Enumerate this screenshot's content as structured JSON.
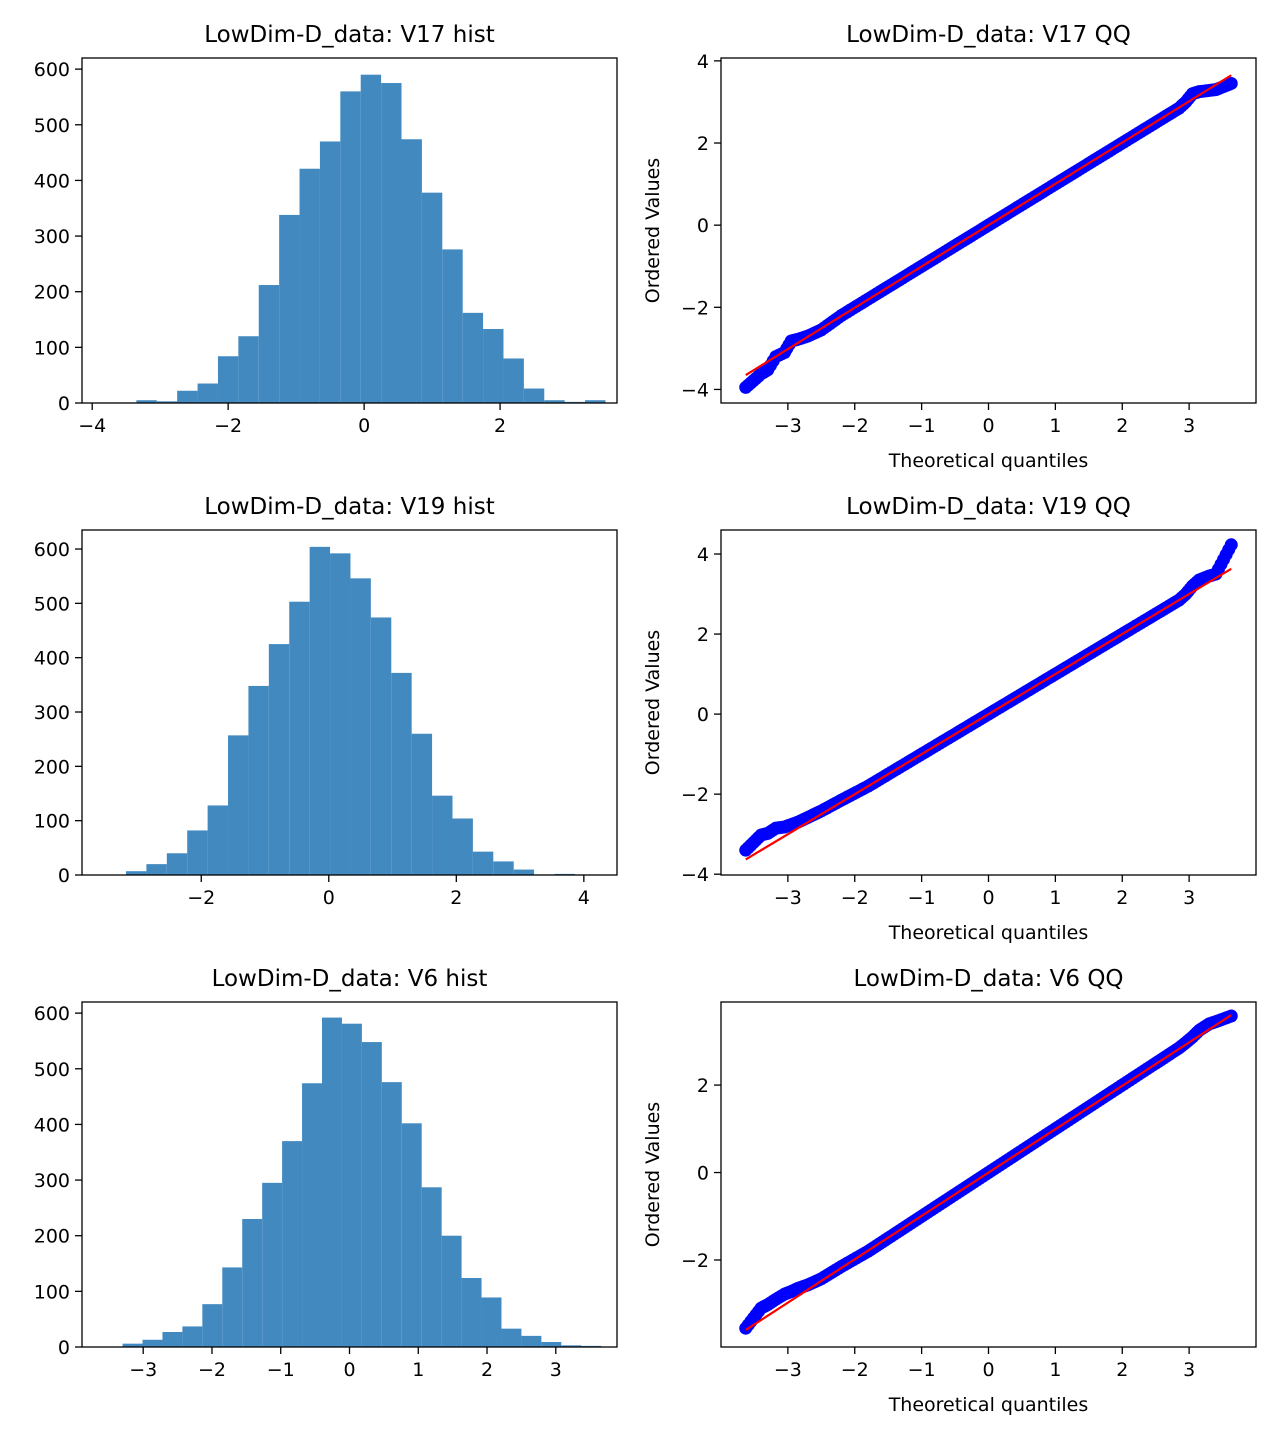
{
  "colors": {
    "hist": "#4289c0",
    "points": "#0000ff",
    "fit_line": "#ff0000"
  },
  "chart_data": [
    {
      "type": "bar",
      "title": "LowDim-D_data: V17 hist",
      "xlabel": "",
      "ylabel": "",
      "xlim": [
        -4.15,
        3.72
      ],
      "ylim": [
        0,
        620
      ],
      "xticks": [
        "−4",
        "−2",
        "0",
        "2"
      ],
      "xtick_values": [
        -4,
        -2,
        0,
        2
      ],
      "yticks": [
        "0",
        "100",
        "200",
        "300",
        "400",
        "500",
        "600"
      ],
      "ytick_values": [
        0,
        100,
        200,
        300,
        400,
        500,
        600
      ],
      "bin_edges": [
        -3.95,
        -3.65,
        -3.35,
        -3.05,
        -2.75,
        -2.45,
        -2.15,
        -1.85,
        -1.55,
        -1.25,
        -0.95,
        -0.65,
        -0.35,
        -0.05,
        0.25,
        0.55,
        0.85,
        1.15,
        1.45,
        1.75,
        2.05,
        2.35,
        2.65,
        2.95,
        3.25,
        3.55
      ],
      "values": [
        1,
        1,
        5,
        3,
        22,
        35,
        84,
        120,
        212,
        338,
        421,
        470,
        560,
        590,
        575,
        474,
        378,
        276,
        162,
        133,
        80,
        26,
        5,
        2,
        5
      ]
    },
    {
      "type": "scatter",
      "title": "LowDim-D_data: V17 QQ",
      "xlabel": "Theoretical quantiles",
      "ylabel": "Ordered Values",
      "xlim": [
        -4.0,
        4.0
      ],
      "ylim": [
        -4.33,
        4.07
      ],
      "xticks": [
        "−3",
        "−2",
        "−1",
        "0",
        "1",
        "2",
        "3"
      ],
      "xtick_values": [
        -3,
        -2,
        -1,
        0,
        1,
        2,
        3
      ],
      "yticks": [
        "−4",
        "−2",
        "0",
        "2",
        "4"
      ],
      "ytick_values": [
        -4,
        -2,
        0,
        2,
        4
      ],
      "fit_line": {
        "x": [
          -3.63,
          3.63
        ],
        "y": [
          -3.65,
          3.65
        ]
      },
      "series": [
        {
          "x": [
            -3.63,
            -3.4,
            -3.3,
            -3.18,
            -3.05,
            -2.95,
            -2.85,
            -2.7,
            -2.5,
            -2.2,
            -1.8,
            -1.2,
            -0.6,
            0,
            0.6,
            1.2,
            1.8,
            2.2,
            2.5,
            2.7,
            2.85,
            2.95,
            3.05,
            3.15,
            3.3,
            3.4,
            3.63
          ],
          "y": [
            -3.95,
            -3.62,
            -3.52,
            -3.2,
            -3.1,
            -2.82,
            -2.78,
            -2.7,
            -2.55,
            -2.2,
            -1.8,
            -1.2,
            -0.6,
            0,
            0.6,
            1.2,
            1.8,
            2.2,
            2.5,
            2.7,
            2.85,
            3.0,
            3.2,
            3.25,
            3.28,
            3.3,
            3.45
          ]
        }
      ]
    },
    {
      "type": "bar",
      "title": "LowDim-D_data: V19 hist",
      "xlabel": "",
      "ylabel": "",
      "xlim": [
        -3.87,
        4.52
      ],
      "ylim": [
        0,
        635
      ],
      "xticks": [
        "−2",
        "0",
        "2",
        "4"
      ],
      "xtick_values": [
        -2,
        0,
        2,
        4
      ],
      "yticks": [
        "0",
        "100",
        "200",
        "300",
        "400",
        "500",
        "600"
      ],
      "ytick_values": [
        0,
        100,
        200,
        300,
        400,
        500,
        600
      ],
      "bin_edges": [
        -3.18,
        -2.86,
        -2.54,
        -2.22,
        -1.9,
        -1.58,
        -1.26,
        -0.94,
        -0.62,
        -0.3,
        0.02,
        0.34,
        0.66,
        0.98,
        1.3,
        1.62,
        1.94,
        2.26,
        2.58,
        2.9,
        3.22,
        3.54,
        3.86,
        4.18
      ],
      "values": [
        7,
        20,
        40,
        82,
        128,
        257,
        348,
        425,
        503,
        604,
        592,
        546,
        474,
        372,
        260,
        146,
        104,
        43,
        25,
        10,
        1,
        2,
        1
      ]
    },
    {
      "type": "scatter",
      "title": "LowDim-D_data: V19 QQ",
      "xlabel": "Theoretical quantiles",
      "ylabel": "Ordered Values",
      "xlim": [
        -4.0,
        4.0
      ],
      "ylim": [
        -4.02,
        4.6
      ],
      "xticks": [
        "−3",
        "−2",
        "−1",
        "0",
        "1",
        "2",
        "3"
      ],
      "xtick_values": [
        -3,
        -2,
        -1,
        0,
        1,
        2,
        3
      ],
      "yticks": [
        "−4",
        "−2",
        "0",
        "2",
        "4"
      ],
      "ytick_values": [
        -4,
        -2,
        0,
        2,
        4
      ],
      "fit_line": {
        "x": [
          -3.63,
          3.63
        ],
        "y": [
          -3.63,
          3.63
        ]
      },
      "series": [
        {
          "x": [
            -3.63,
            -3.4,
            -3.3,
            -3.18,
            -3.05,
            -2.95,
            -2.85,
            -2.7,
            -2.5,
            -2.2,
            -1.8,
            -1.2,
            -0.6,
            0,
            0.6,
            1.2,
            1.8,
            2.2,
            2.5,
            2.7,
            2.85,
            2.95,
            3.05,
            3.15,
            3.3,
            3.4,
            3.63
          ],
          "y": [
            -3.4,
            -3.02,
            -2.98,
            -2.85,
            -2.82,
            -2.76,
            -2.7,
            -2.58,
            -2.42,
            -2.15,
            -1.8,
            -1.2,
            -0.6,
            0,
            0.6,
            1.2,
            1.8,
            2.2,
            2.5,
            2.7,
            2.85,
            3.0,
            3.2,
            3.35,
            3.45,
            3.5,
            4.23
          ]
        }
      ]
    },
    {
      "type": "bar",
      "title": "LowDim-D_data: V6 hist",
      "xlabel": "",
      "ylabel": "",
      "xlim": [
        -3.89,
        3.89
      ],
      "ylim": [
        0,
        620
      ],
      "xticks": [
        "−3",
        "−2",
        "−1",
        "0",
        "1",
        "2",
        "3"
      ],
      "xtick_values": [
        -3,
        -2,
        -1,
        0,
        1,
        2,
        3
      ],
      "yticks": [
        "0",
        "100",
        "200",
        "300",
        "400",
        "500",
        "600"
      ],
      "ytick_values": [
        0,
        100,
        200,
        300,
        400,
        500,
        600
      ],
      "bin_edges": [
        -3.3,
        -3.01,
        -2.72,
        -2.43,
        -2.14,
        -1.85,
        -1.56,
        -1.27,
        -0.98,
        -0.69,
        -0.4,
        -0.11,
        0.18,
        0.47,
        0.76,
        1.05,
        1.34,
        1.63,
        1.92,
        2.21,
        2.5,
        2.79,
        3.08,
        3.37,
        3.66
      ],
      "values": [
        6,
        13,
        27,
        37,
        77,
        143,
        230,
        295,
        370,
        474,
        592,
        581,
        548,
        476,
        402,
        287,
        200,
        124,
        89,
        33,
        20,
        9,
        3,
        2
      ]
    },
    {
      "type": "scatter",
      "title": "LowDim-D_data: V6 QQ",
      "xlabel": "Theoretical quantiles",
      "ylabel": "Ordered Values",
      "xlim": [
        -4.0,
        4.0
      ],
      "ylim": [
        -3.99,
        3.9
      ],
      "xticks": [
        "−3",
        "−2",
        "−1",
        "0",
        "1",
        "2",
        "3"
      ],
      "xtick_values": [
        -3,
        -2,
        -1,
        0,
        1,
        2,
        3
      ],
      "yticks": [
        "−2",
        "0",
        "2"
      ],
      "ytick_values": [
        -2,
        0,
        2
      ],
      "fit_line": {
        "x": [
          -3.63,
          3.63
        ],
        "y": [
          -3.6,
          3.6
        ]
      },
      "series": [
        {
          "x": [
            -3.63,
            -3.4,
            -3.3,
            -3.18,
            -3.05,
            -2.95,
            -2.85,
            -2.7,
            -2.5,
            -2.2,
            -1.8,
            -1.2,
            -0.6,
            0,
            0.6,
            1.2,
            1.8,
            2.2,
            2.5,
            2.7,
            2.85,
            2.95,
            3.05,
            3.15,
            3.3,
            3.4,
            3.63
          ],
          "y": [
            -3.56,
            -3.1,
            -3.02,
            -2.9,
            -2.78,
            -2.72,
            -2.65,
            -2.57,
            -2.43,
            -2.15,
            -1.8,
            -1.2,
            -0.6,
            0,
            0.6,
            1.2,
            1.8,
            2.2,
            2.5,
            2.7,
            2.85,
            2.97,
            3.1,
            3.25,
            3.4,
            3.45,
            3.58
          ]
        }
      ]
    }
  ]
}
